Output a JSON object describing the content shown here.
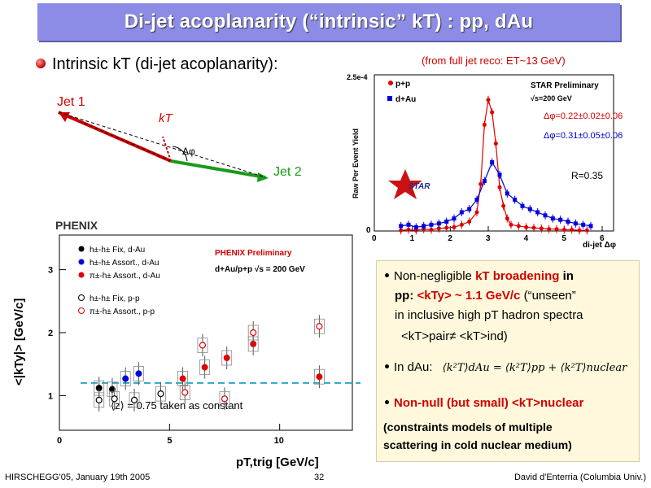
{
  "slide": {
    "title": "Di-jet acoplanarity (“intrinsic” kT) : pp, dAu",
    "bullet_main": "Intrinsic kT (di-jet acoplanarity):",
    "jet_reco_note": "(from full jet reco: ET~13 GeV)",
    "diagram": {
      "jet1": "Jet 1",
      "jet2": "Jet 2",
      "kt": "kT",
      "dphi": "Δφ"
    },
    "star_plot": {
      "legend_pp": "p+p",
      "legend_dau": "d+Au",
      "label1": "STAR Preliminary",
      "label2": "√s=200 GeV",
      "dphi_pp": "Δφ=0.22±0.02±0.06",
      "dphi_dau": "Δφ=0.31±0.05±0.06",
      "r_label": "R=0.35",
      "ylabel": "Raw Per Event Yield",
      "xlabel": "di-jet Δφ",
      "ymax_label": "2.5e-4",
      "logo": "STAR"
    },
    "phenix_plot": {
      "logo": "PHENIX",
      "prelim": "PHENIX Preliminary",
      "system": "d+Au/p+p √s = 200 GeV",
      "ylabel": "<|kTy|> [GeV/c]",
      "xlabel": "pT,trig [GeV/c]",
      "z_note": "⟨z⟩ = 0.75 taken as constant",
      "legend": [
        "h±-h± Fix, d-Au",
        "h±-h± Assort., d-Au",
        "π±-h± Assort., d-Au",
        "h±-h± Fix, p-p",
        "π±-h± Assort., p-p"
      ]
    },
    "right_box": {
      "l1a": "Non-negligible ",
      "l1b": "kT broadening",
      "l1c": " in",
      "l2a": "pp: ",
      "l2b": "<kTy> ~ 1.1 GeV/c",
      "l2c": "  (“unseen”",
      "l3": "in inclusive high pT hadron spectra",
      "l4": "<kT>pair≠ <kT>ind)",
      "l5": "In dAu:",
      "l5eq": "⟨k²T⟩dAu = ⟨k²T⟩pp + ⟨k²T⟩nuclear",
      "l6": "Non-null (but small) <kT>nuclear",
      "l7": "(constraints models of multiple",
      "l8": "scattering in cold nuclear medium)"
    },
    "footer": {
      "left": "HIRSCHEGG'05, January 19th 2005",
      "page": "32",
      "right": "David d'Enterria (Columbia Univ.)"
    }
  },
  "chart_data": [
    {
      "type": "scatter",
      "title": "STAR Preliminary",
      "xlabel": "di-jet Δφ",
      "ylabel": "Raw Per Event Yield",
      "xlim": [
        0,
        6.3
      ],
      "ylim": [
        0,
        0.00025
      ],
      "x_ticks": [
        0,
        1,
        2,
        3,
        4,
        5,
        6
      ],
      "series": [
        {
          "name": "p+p",
          "color": "#e00000",
          "x": [
            0.7,
            0.9,
            1.1,
            1.3,
            1.5,
            1.7,
            1.9,
            2.1,
            2.3,
            2.5,
            2.7,
            2.8,
            2.9,
            3.0,
            3.1,
            3.2,
            3.3,
            3.4,
            3.5,
            3.6,
            3.8,
            4.0,
            4.2,
            4.4,
            4.6,
            4.8,
            5.0,
            5.2,
            5.4,
            5.6
          ],
          "values": [
            1e-06,
            2e-06,
            1e-06,
            3e-06,
            2e-06,
            4e-06,
            5e-06,
            6e-06,
            1e-05,
            1.5e-05,
            3e-05,
            7.5e-05,
            0.00017,
            0.00021,
            0.00019,
            0.00014,
            7e-05,
            4e-05,
            2e-05,
            1e-05,
            8e-06,
            6e-06,
            5e-06,
            4e-06,
            3e-06,
            3e-06,
            2e-06,
            2e-06,
            1e-06,
            1e-06
          ]
        },
        {
          "name": "d+Au",
          "color": "#0000e0",
          "x": [
            0.7,
            0.9,
            1.1,
            1.3,
            1.5,
            1.7,
            1.9,
            2.1,
            2.3,
            2.5,
            2.7,
            2.9,
            3.1,
            3.3,
            3.5,
            3.7,
            3.9,
            4.1,
            4.3,
            4.5,
            4.7,
            4.9,
            5.1,
            5.3,
            5.5,
            5.7
          ],
          "values": [
            8e-06,
            1e-05,
            6e-06,
            8e-06,
            1e-05,
            1.2e-05,
            1.5e-05,
            2e-05,
            3e-05,
            3.5e-05,
            5e-05,
            8e-05,
            0.00011,
            9e-05,
            6e-05,
            5e-05,
            4e-05,
            3.5e-05,
            3e-05,
            2.5e-05,
            2e-05,
            1.8e-05,
            1.5e-05,
            1.2e-05,
            1e-05,
            8e-06
          ]
        }
      ]
    },
    {
      "type": "scatter",
      "title": "PHENIX Preliminary",
      "xlabel": "pT,trig [GeV/c]",
      "ylabel": "<|kTy|> [GeV/c]",
      "xlim": [
        0,
        13.3
      ],
      "ylim": [
        0.45,
        3.55
      ],
      "x_ticks": [
        0,
        5,
        10
      ],
      "y_ticks": [
        1,
        2,
        3
      ],
      "reference_line": 1.2,
      "series": [
        {
          "name": "h±-h± Fix, d-Au",
          "marker": "filled",
          "color": "#000000",
          "x": [
            1.8,
            2.4
          ],
          "values": [
            1.12,
            1.1
          ]
        },
        {
          "name": "h±-h± Assort., d-Au",
          "marker": "filled",
          "color": "#0000e0",
          "x": [
            3.0,
            3.6
          ],
          "values": [
            1.27,
            1.35
          ]
        },
        {
          "name": "π±-h± Assort., d-Au",
          "marker": "filled",
          "color": "#e00000",
          "x": [
            5.6,
            6.6,
            7.6,
            8.8,
            11.8
          ],
          "values": [
            1.27,
            1.45,
            1.6,
            1.82,
            1.3
          ]
        },
        {
          "name": "h±-h± Fix, p-p",
          "marker": "open",
          "color": "#000000",
          "x": [
            1.8,
            2.5,
            3.4,
            4.6
          ],
          "values": [
            0.93,
            0.95,
            0.93,
            1.03
          ]
        },
        {
          "name": "π±-h± Assort., p-p",
          "marker": "open",
          "color": "#e00000",
          "x": [
            5.7,
            6.5,
            7.5,
            8.8,
            11.8
          ],
          "values": [
            1.05,
            1.8,
            0.95,
            2.0,
            2.1
          ]
        }
      ]
    }
  ]
}
